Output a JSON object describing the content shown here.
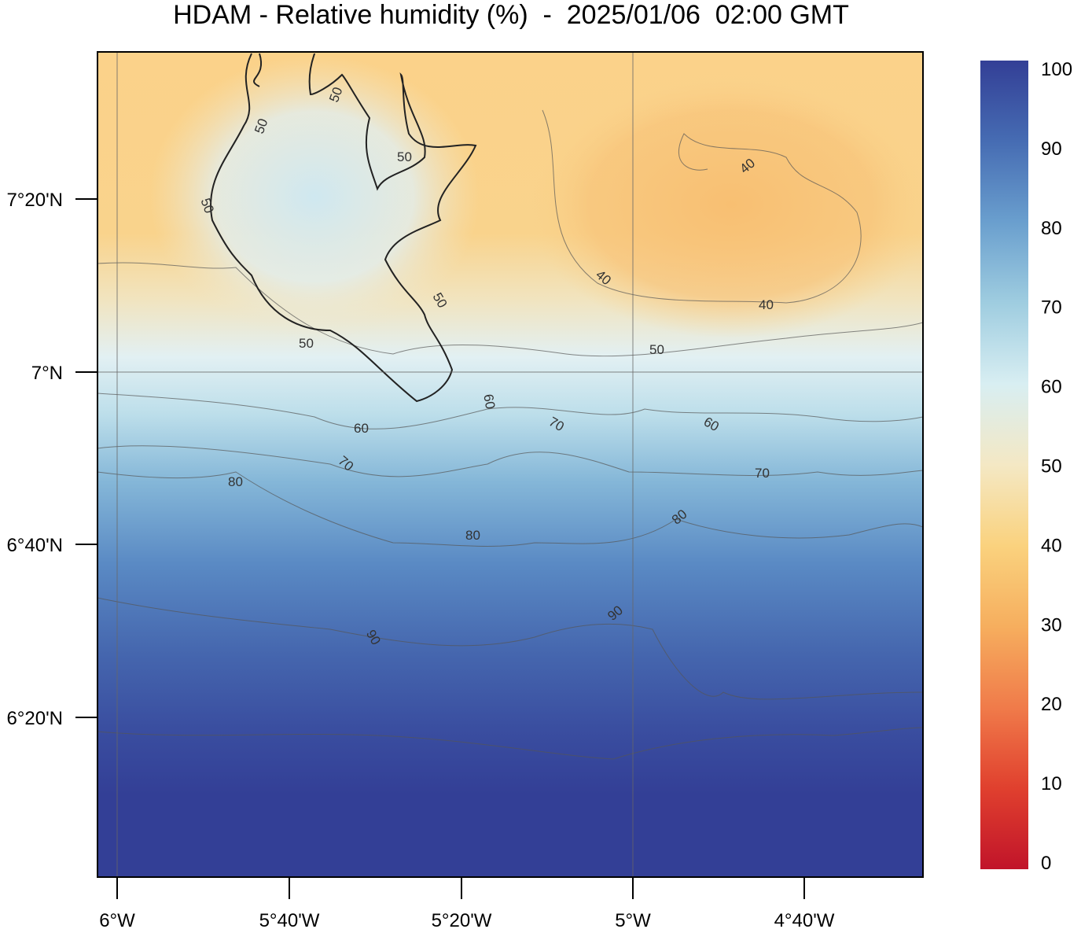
{
  "title": "HDAM - Relative humidity (%)  -  2025/01/06  02:00 GMT",
  "map": {
    "lat_labels": [
      "7°20'N",
      "7°N",
      "6°40'N",
      "6°20'N"
    ],
    "lon_labels": [
      "6°W",
      "5°40'W",
      "5°20'W",
      "5°W",
      "4°40'W"
    ]
  },
  "colorbar": {
    "min": 0,
    "max": 100,
    "tick_labels": [
      "0",
      "10",
      "20",
      "30",
      "40",
      "50",
      "60",
      "70",
      "80",
      "90",
      "100"
    ],
    "colors": [
      "#c1142a",
      "#e0402e",
      "#f07b4a",
      "#f6ae5e",
      "#fad27e",
      "#f4e8c4",
      "#d8eef2",
      "#9fcde0",
      "#6a9fce",
      "#466cb3",
      "#333f96"
    ]
  },
  "contour_labels": [
    "50",
    "50",
    "50",
    "50",
    "50",
    "50",
    "40",
    "40",
    "40",
    "50",
    "60",
    "60",
    "60",
    "70",
    "70",
    "70",
    "80",
    "80",
    "80",
    "90",
    "90"
  ]
}
